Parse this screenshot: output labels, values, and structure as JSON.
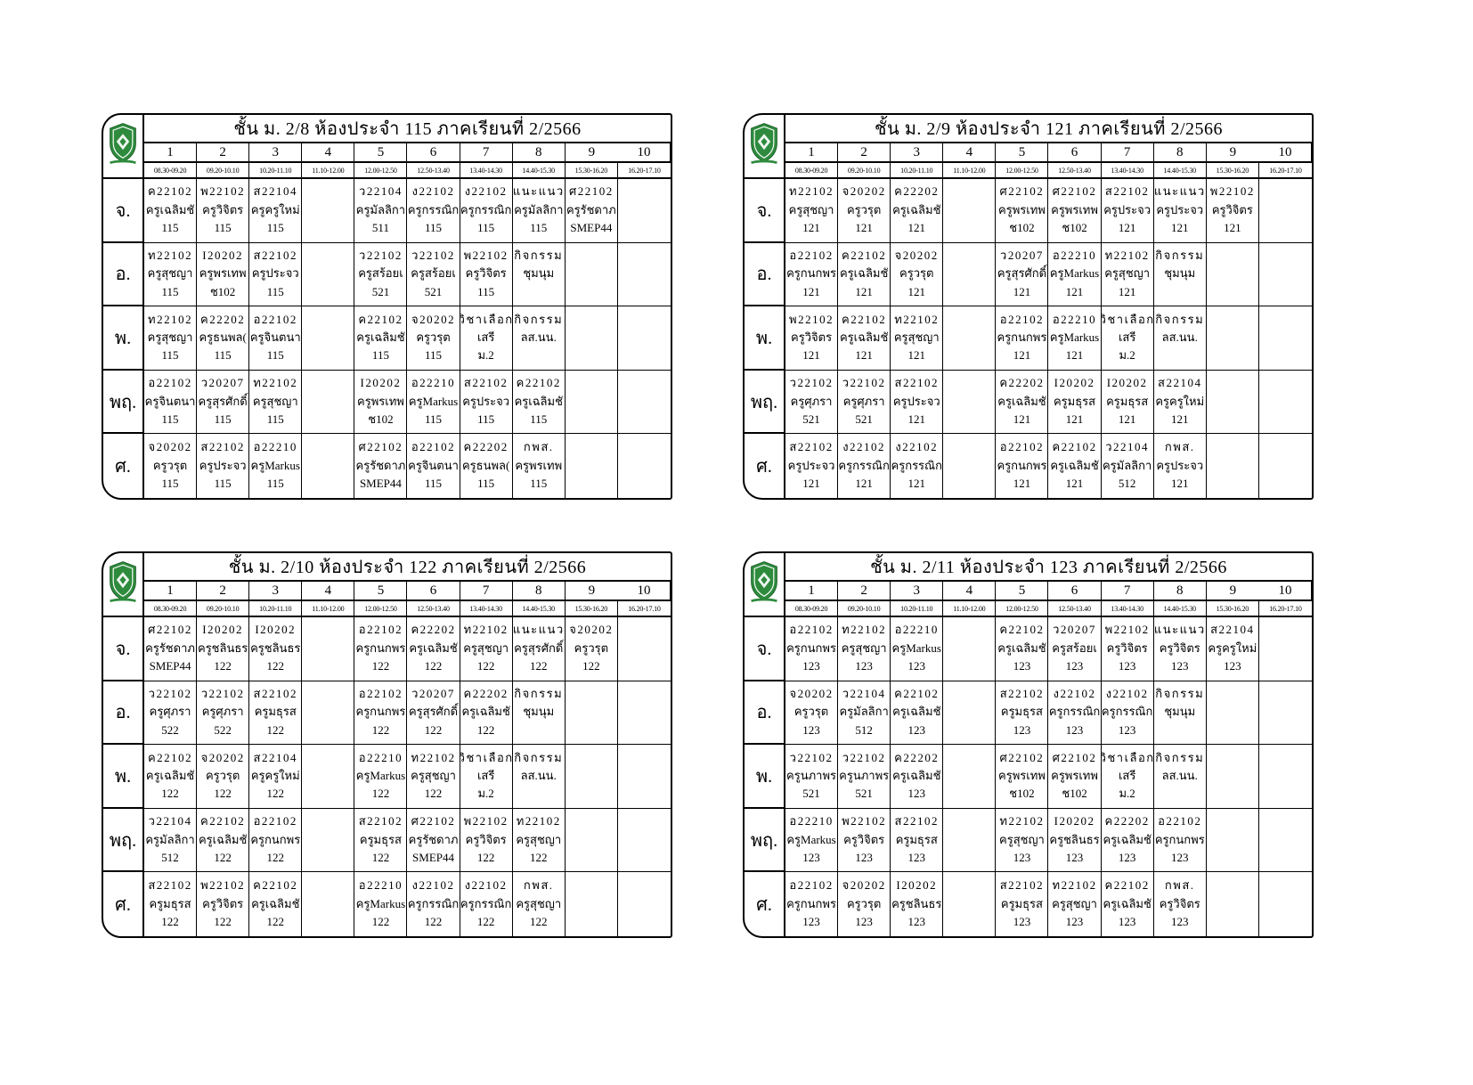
{
  "page": {
    "background": "#ffffff",
    "border_color": "#000000",
    "crest_green": "#2e8b3d",
    "crest_icon": "school-crest-shield-icon"
  },
  "columns": [
    "1",
    "2",
    "3",
    "4",
    "5",
    "6",
    "7",
    "8",
    "9",
    "10"
  ],
  "times": [
    "08.30-09.20",
    "09.20-10.10",
    "10.20-11.10",
    "11.10-12.00",
    "12.00-12.50",
    "12.50-13.40",
    "13.40-14.30",
    "14.40-15.30",
    "15.30-16.20",
    "16.20-17.10"
  ],
  "tables": [
    {
      "title": "ชั้น ม. 2/8 ห้องประจำ 115 ภาคเรียนที่ 2/2566",
      "rows": [
        {
          "day": "จ.",
          "cells": [
            [
              "ค22102",
              "ครูเฉลิมชั",
              "115"
            ],
            [
              "พ22102",
              "ครูวิจิตร",
              "115"
            ],
            [
              "ส22104",
              "ครูครูใหม่",
              "115"
            ],
            null,
            [
              "ว22104",
              "ครูมัลลิกา",
              "511"
            ],
            [
              "ง22102",
              "ครูกรรณิก",
              "115"
            ],
            [
              "ง22102",
              "ครูกรรณิก",
              "115"
            ],
            [
              "แนะแนว",
              "ครูมัลลิกา",
              "115"
            ],
            [
              "ศ22102",
              "ครูรัชดาภ",
              "SMEP44"
            ],
            null
          ]
        },
        {
          "day": "อ.",
          "cells": [
            [
              "ท22102",
              "ครูสุชญา",
              "115"
            ],
            [
              "I20202",
              "ครูพรเทพ",
              "ช102"
            ],
            [
              "ส22102",
              "ครูประจว",
              "115"
            ],
            null,
            [
              "ว22102",
              "ครูสร้อยเ",
              "521"
            ],
            [
              "ว22102",
              "ครูสร้อยเ",
              "521"
            ],
            [
              "พ22102",
              "ครูวิจิตร",
              "115"
            ],
            [
              "กิจกรรม",
              "ชุมนุม"
            ],
            null,
            null
          ]
        },
        {
          "day": "พ.",
          "cells": [
            [
              "ท22102",
              "ครูสุชญา",
              "115"
            ],
            [
              "ค22202",
              "ครูธนพล(",
              "115"
            ],
            [
              "อ22102",
              "ครูจินตนา",
              "115"
            ],
            null,
            [
              "ค22102",
              "ครูเฉลิมชั",
              "115"
            ],
            [
              "จ20202",
              "ครูวรุต",
              "115"
            ],
            [
              "วิชาเลือก",
              "เสรี",
              "ม.2"
            ],
            [
              "กิจกรรม",
              "ลส.นน."
            ],
            null,
            null
          ]
        },
        {
          "day": "พฤ.",
          "cells": [
            [
              "อ22102",
              "ครูจินตนา",
              "115"
            ],
            [
              "ว20207",
              "ครูสุรศักดิ์",
              "115"
            ],
            [
              "ท22102",
              "ครูสุชญา",
              "115"
            ],
            null,
            [
              "I20202",
              "ครูพรเทพ",
              "ช102"
            ],
            [
              "อ22210",
              "ครูMarkus",
              "115"
            ],
            [
              "ส22102",
              "ครูประจว",
              "115"
            ],
            [
              "ค22102",
              "ครูเฉลิมชั",
              "115"
            ],
            null,
            null
          ]
        },
        {
          "day": "ศ.",
          "cells": [
            [
              "จ20202",
              "ครูวรุต",
              "115"
            ],
            [
              "ส22102",
              "ครูประจว",
              "115"
            ],
            [
              "อ22210",
              "ครูMarkus",
              "115"
            ],
            null,
            [
              "ศ22102",
              "ครูรัชดาภ",
              "SMEP44"
            ],
            [
              "อ22102",
              "ครูจินตนา",
              "115"
            ],
            [
              "ค22202",
              "ครูธนพล(",
              "115"
            ],
            [
              "กพส.",
              "ครูพรเทพ",
              "115"
            ],
            null,
            null
          ]
        }
      ]
    },
    {
      "title": "ชั้น ม. 2/9 ห้องประจำ 121 ภาคเรียนที่ 2/2566",
      "rows": [
        {
          "day": "จ.",
          "cells": [
            [
              "ท22102",
              "ครูสุชญา",
              "121"
            ],
            [
              "จ20202",
              "ครูวรุต",
              "121"
            ],
            [
              "ค22202",
              "ครูเฉลิมชั",
              "121"
            ],
            null,
            [
              "ศ22102",
              "ครูพรเทพ",
              "ช102"
            ],
            [
              "ศ22102",
              "ครูพรเทพ",
              "ช102"
            ],
            [
              "ส22102",
              "ครูประจว",
              "121"
            ],
            [
              "แนะแนว",
              "ครูประจว",
              "121"
            ],
            [
              "พ22102",
              "ครูวิจิตร",
              "121"
            ],
            null
          ]
        },
        {
          "day": "อ.",
          "cells": [
            [
              "อ22102",
              "ครูกนกพร",
              "121"
            ],
            [
              "ค22102",
              "ครูเฉลิมชั",
              "121"
            ],
            [
              "จ20202",
              "ครูวรุต",
              "121"
            ],
            null,
            [
              "ว20207",
              "ครูสุรศักดิ์",
              "121"
            ],
            [
              "อ22210",
              "ครูMarkus",
              "121"
            ],
            [
              "ท22102",
              "ครูสุชญา",
              "121"
            ],
            [
              "กิจกรรม",
              "ชุมนุม"
            ],
            null,
            null
          ]
        },
        {
          "day": "พ.",
          "cells": [
            [
              "พ22102",
              "ครูวิจิตร",
              "121"
            ],
            [
              "ค22102",
              "ครูเฉลิมชั",
              "121"
            ],
            [
              "ท22102",
              "ครูสุชญา",
              "121"
            ],
            null,
            [
              "อ22102",
              "ครูกนกพร",
              "121"
            ],
            [
              "อ22210",
              "ครูMarkus",
              "121"
            ],
            [
              "วิชาเลือก",
              "เสรี",
              "ม.2"
            ],
            [
              "กิจกรรม",
              "ลส.นน."
            ],
            null,
            null
          ]
        },
        {
          "day": "พฤ.",
          "cells": [
            [
              "ว22102",
              "ครูศุภรา",
              "521"
            ],
            [
              "ว22102",
              "ครูศุภรา",
              "521"
            ],
            [
              "ส22102",
              "ครูประจว",
              "121"
            ],
            null,
            [
              "ค22202",
              "ครูเฉลิมชั",
              "121"
            ],
            [
              "I20202",
              "ครูมธุรส",
              "121"
            ],
            [
              "I20202",
              "ครูมธุรส",
              "121"
            ],
            [
              "ส22104",
              "ครูครูใหม่",
              "121"
            ],
            null,
            null
          ]
        },
        {
          "day": "ศ.",
          "cells": [
            [
              "ส22102",
              "ครูประจว",
              "121"
            ],
            [
              "ง22102",
              "ครูกรรณิก",
              "121"
            ],
            [
              "ง22102",
              "ครูกรรณิก",
              "121"
            ],
            null,
            [
              "อ22102",
              "ครูกนกพร",
              "121"
            ],
            [
              "ค22102",
              "ครูเฉลิมชั",
              "121"
            ],
            [
              "ว22104",
              "ครูมัลลิกา",
              "512"
            ],
            [
              "กพส.",
              "ครูประจว",
              "121"
            ],
            null,
            null
          ]
        }
      ]
    },
    {
      "title": "ชั้น ม. 2/10 ห้องประจำ 122 ภาคเรียนที่ 2/2566",
      "rows": [
        {
          "day": "จ.",
          "cells": [
            [
              "ศ22102",
              "ครูรัชดาภ",
              "SMEP44"
            ],
            [
              "I20202",
              "ครูชลินธร",
              "122"
            ],
            [
              "I20202",
              "ครูชลินธร",
              "122"
            ],
            null,
            [
              "อ22102",
              "ครูกนกพร",
              "122"
            ],
            [
              "ค22202",
              "ครูเฉลิมชั",
              "122"
            ],
            [
              "ท22102",
              "ครูสุชญา",
              "122"
            ],
            [
              "แนะแนว",
              "ครูสุรศักดิ์",
              "122"
            ],
            [
              "จ20202",
              "ครูวรุต",
              "122"
            ],
            null
          ]
        },
        {
          "day": "อ.",
          "cells": [
            [
              "ว22102",
              "ครูศุภรา",
              "522"
            ],
            [
              "ว22102",
              "ครูศุภรา",
              "522"
            ],
            [
              "ส22102",
              "ครูมธุรส",
              "122"
            ],
            null,
            [
              "อ22102",
              "ครูกนกพร",
              "122"
            ],
            [
              "ว20207",
              "ครูสุรศักดิ์",
              "122"
            ],
            [
              "ค22202",
              "ครูเฉลิมชั",
              "122"
            ],
            [
              "กิจกรรม",
              "ชุมนุม"
            ],
            null,
            null
          ]
        },
        {
          "day": "พ.",
          "cells": [
            [
              "ค22102",
              "ครูเฉลิมชั",
              "122"
            ],
            [
              "จ20202",
              "ครูวรุต",
              "122"
            ],
            [
              "ส22104",
              "ครูครูใหม่",
              "122"
            ],
            null,
            [
              "อ22210",
              "ครูMarkus",
              "122"
            ],
            [
              "ท22102",
              "ครูสุชญา",
              "122"
            ],
            [
              "วิชาเลือก",
              "เสรี",
              "ม.2"
            ],
            [
              "กิจกรรม",
              "ลส.นน."
            ],
            null,
            null
          ]
        },
        {
          "day": "พฤ.",
          "cells": [
            [
              "ว22104",
              "ครูมัลลิกา",
              "512"
            ],
            [
              "ค22102",
              "ครูเฉลิมชั",
              "122"
            ],
            [
              "อ22102",
              "ครูกนกพร",
              "122"
            ],
            null,
            [
              "ส22102",
              "ครูมธุรส",
              "122"
            ],
            [
              "ศ22102",
              "ครูรัชดาภ",
              "SMEP44"
            ],
            [
              "พ22102",
              "ครูวิจิตร",
              "122"
            ],
            [
              "ท22102",
              "ครูสุชญา",
              "122"
            ],
            null,
            null
          ]
        },
        {
          "day": "ศ.",
          "cells": [
            [
              "ส22102",
              "ครูมธุรส",
              "122"
            ],
            [
              "พ22102",
              "ครูวิจิตร",
              "122"
            ],
            [
              "ค22102",
              "ครูเฉลิมชั",
              "122"
            ],
            null,
            [
              "อ22210",
              "ครูMarkus",
              "122"
            ],
            [
              "ง22102",
              "ครูกรรณิก",
              "122"
            ],
            [
              "ง22102",
              "ครูกรรณิก",
              "122"
            ],
            [
              "กพส.",
              "ครูสุชญา",
              "122"
            ],
            null,
            null
          ]
        }
      ]
    },
    {
      "title": "ชั้น ม. 2/11 ห้องประจำ 123 ภาคเรียนที่ 2/2566",
      "rows": [
        {
          "day": "จ.",
          "cells": [
            [
              "อ22102",
              "ครูกนกพร",
              "123"
            ],
            [
              "ท22102",
              "ครูสุชญา",
              "123"
            ],
            [
              "อ22210",
              "ครูMarkus",
              "123"
            ],
            null,
            [
              "ค22102",
              "ครูเฉลิมชั",
              "123"
            ],
            [
              "ว20207",
              "ครูสร้อยเ",
              "123"
            ],
            [
              "พ22102",
              "ครูวิจิตร",
              "123"
            ],
            [
              "แนะแนว",
              "ครูวิจิตร",
              "123"
            ],
            [
              "ส22104",
              "ครูครูใหม่",
              "123"
            ],
            null
          ]
        },
        {
          "day": "อ.",
          "cells": [
            [
              "จ20202",
              "ครูวรุต",
              "123"
            ],
            [
              "ว22104",
              "ครูมัลลิกา",
              "512"
            ],
            [
              "ค22102",
              "ครูเฉลิมชั",
              "123"
            ],
            null,
            [
              "ส22102",
              "ครูมธุรส",
              "123"
            ],
            [
              "ง22102",
              "ครูกรรณิก",
              "123"
            ],
            [
              "ง22102",
              "ครูกรรณิก",
              "123"
            ],
            [
              "กิจกรรม",
              "ชุมนุม"
            ],
            null,
            null
          ]
        },
        {
          "day": "พ.",
          "cells": [
            [
              "ว22102",
              "ครูนภาพร",
              "521"
            ],
            [
              "ว22102",
              "ครูนภาพร",
              "521"
            ],
            [
              "ค22202",
              "ครูเฉลิมชั",
              "123"
            ],
            null,
            [
              "ศ22102",
              "ครูพรเทพ",
              "ช102"
            ],
            [
              "ศ22102",
              "ครูพรเทพ",
              "ช102"
            ],
            [
              "วิชาเลือก",
              "เสรี",
              "ม.2"
            ],
            [
              "กิจกรรม",
              "ลส.นน."
            ],
            null,
            null
          ]
        },
        {
          "day": "พฤ.",
          "cells": [
            [
              "อ22210",
              "ครูMarkus",
              "123"
            ],
            [
              "พ22102",
              "ครูวิจิตร",
              "123"
            ],
            [
              "ส22102",
              "ครูมธุรส",
              "123"
            ],
            null,
            [
              "ท22102",
              "ครูสุชญา",
              "123"
            ],
            [
              "I20202",
              "ครูชลินธร",
              "123"
            ],
            [
              "ค22202",
              "ครูเฉลิมชั",
              "123"
            ],
            [
              "อ22102",
              "ครูกนกพร",
              "123"
            ],
            null,
            null
          ]
        },
        {
          "day": "ศ.",
          "cells": [
            [
              "อ22102",
              "ครูกนกพร",
              "123"
            ],
            [
              "จ20202",
              "ครูวรุต",
              "123"
            ],
            [
              "I20202",
              "ครูชลินธร",
              "123"
            ],
            null,
            [
              "ส22102",
              "ครูมธุรส",
              "123"
            ],
            [
              "ท22102",
              "ครูสุชญา",
              "123"
            ],
            [
              "ค22102",
              "ครูเฉลิมชั",
              "123"
            ],
            [
              "กพส.",
              "ครูวิจิตร",
              "123"
            ],
            null,
            null
          ]
        }
      ]
    }
  ]
}
